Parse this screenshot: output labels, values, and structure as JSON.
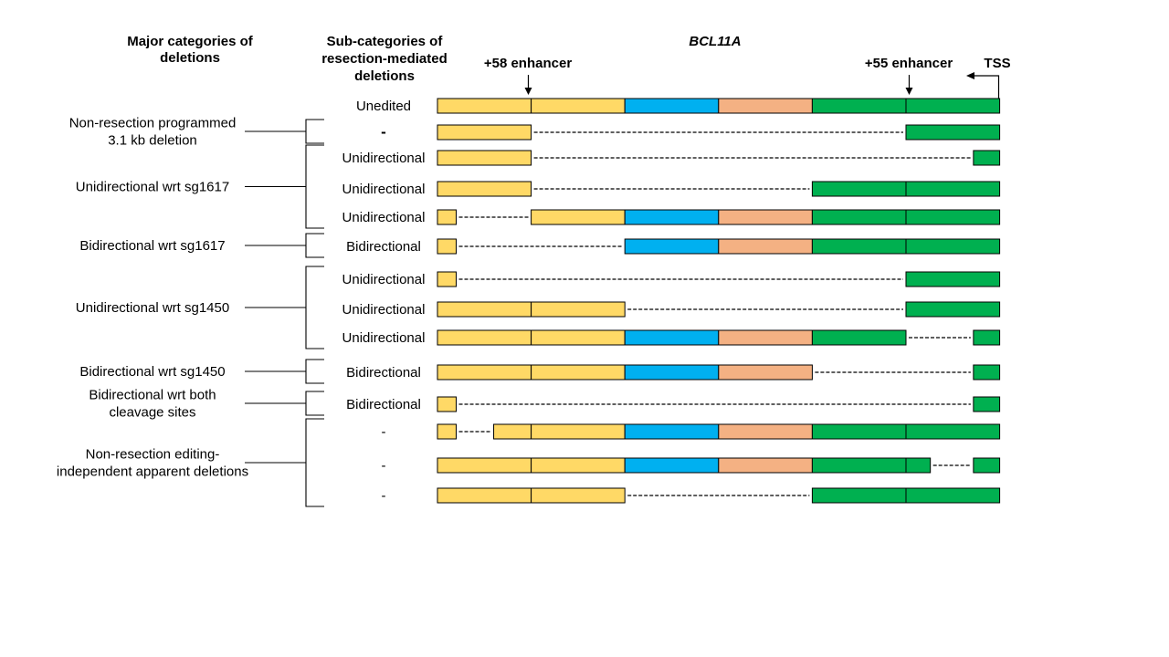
{
  "headers": {
    "major": [
      "Major categories of",
      "deletions"
    ],
    "sub": [
      "Sub-categories of",
      "resection-mediated",
      "deletions"
    ],
    "gene": "BCL11A",
    "enhancer58": "+58 enhancer",
    "enhancer55": "+55 enhancer",
    "tss": "TSS"
  },
  "colors": {
    "yellow": "#FFD966",
    "blue": "#00B0F0",
    "salmon": "#F4B183",
    "green": "#00B050",
    "line": "#000000"
  },
  "rows": [
    {
      "label": "Unedited",
      "bars": [
        [
          "yellow",
          0,
          1
        ],
        [
          "yellow",
          1,
          2
        ],
        [
          "blue",
          2,
          3
        ],
        [
          "salmon",
          3,
          4
        ],
        [
          "green",
          4,
          5
        ],
        [
          "green",
          5,
          6
        ]
      ]
    },
    {
      "label": "-",
      "bold_label": true,
      "bars": [
        [
          "yellow",
          0,
          1
        ],
        [
          "green",
          5,
          6
        ]
      ],
      "gaps": [
        [
          1,
          5
        ]
      ]
    },
    {
      "label": "Unidirectional",
      "bars": [
        [
          "yellow",
          0,
          1
        ],
        [
          "green",
          5.72,
          6
        ]
      ],
      "gaps": [
        [
          1,
          5.72
        ]
      ]
    },
    {
      "label": "Unidirectional",
      "bars": [
        [
          "yellow",
          0,
          1
        ],
        [
          "green",
          4,
          5
        ],
        [
          "green",
          5,
          6
        ]
      ],
      "gaps": [
        [
          1,
          4
        ]
      ]
    },
    {
      "label": "Unidirectional",
      "bars": [
        [
          "yellow",
          0,
          0.2
        ],
        [
          "yellow",
          1,
          2
        ],
        [
          "blue",
          2,
          3
        ],
        [
          "salmon",
          3,
          4
        ],
        [
          "green",
          4,
          5
        ],
        [
          "green",
          5,
          6
        ]
      ],
      "gaps": [
        [
          0.2,
          1
        ]
      ]
    },
    {
      "label": "Bidirectional",
      "bars": [
        [
          "yellow",
          0,
          0.2
        ],
        [
          "blue",
          2,
          3
        ],
        [
          "salmon",
          3,
          4
        ],
        [
          "green",
          4,
          5
        ],
        [
          "green",
          5,
          6
        ]
      ],
      "gaps": [
        [
          0.2,
          2
        ]
      ]
    },
    {
      "label": "Unidirectional",
      "bars": [
        [
          "yellow",
          0,
          0.2
        ],
        [
          "green",
          5,
          6
        ]
      ],
      "gaps": [
        [
          0.2,
          5
        ]
      ]
    },
    {
      "label": "Unidirectional",
      "bars": [
        [
          "yellow",
          0,
          1
        ],
        [
          "yellow",
          1,
          2
        ],
        [
          "green",
          5,
          6
        ]
      ],
      "gaps": [
        [
          2,
          5
        ]
      ]
    },
    {
      "label": "Unidirectional",
      "bars": [
        [
          "yellow",
          0,
          1
        ],
        [
          "yellow",
          1,
          2
        ],
        [
          "blue",
          2,
          3
        ],
        [
          "salmon",
          3,
          4
        ],
        [
          "green",
          4,
          5
        ],
        [
          "green",
          5.72,
          6
        ]
      ],
      "gaps": [
        [
          5,
          5.72
        ]
      ]
    },
    {
      "label": "Bidirectional",
      "bars": [
        [
          "yellow",
          0,
          1
        ],
        [
          "yellow",
          1,
          2
        ],
        [
          "blue",
          2,
          3
        ],
        [
          "salmon",
          3,
          4
        ],
        [
          "green",
          5.72,
          6
        ]
      ],
      "gaps": [
        [
          4,
          5.72
        ]
      ]
    },
    {
      "label": "Bidirectional",
      "bars": [
        [
          "yellow",
          0,
          0.2
        ],
        [
          "green",
          5.72,
          6
        ]
      ],
      "gaps": [
        [
          0.2,
          5.72
        ]
      ]
    },
    {
      "label": "-",
      "bars": [
        [
          "yellow",
          0,
          0.2
        ],
        [
          "yellow",
          0.6,
          1
        ],
        [
          "yellow",
          1,
          2
        ],
        [
          "blue",
          2,
          3
        ],
        [
          "salmon",
          3,
          4
        ],
        [
          "green",
          4,
          5
        ],
        [
          "green",
          5,
          6
        ]
      ],
      "gaps": [
        [
          0.2,
          0.6
        ]
      ]
    },
    {
      "label": "-",
      "bars": [
        [
          "yellow",
          0,
          1
        ],
        [
          "yellow",
          1,
          2
        ],
        [
          "blue",
          2,
          3
        ],
        [
          "salmon",
          3,
          4
        ],
        [
          "green",
          4,
          5
        ],
        [
          "green",
          5,
          5.26
        ],
        [
          "green",
          5.72,
          6
        ]
      ],
      "gaps": [
        [
          5.26,
          5.72
        ]
      ]
    },
    {
      "label": "-",
      "bars": [
        [
          "yellow",
          0,
          1
        ],
        [
          "yellow",
          1,
          2
        ],
        [
          "green",
          4,
          5
        ],
        [
          "green",
          5,
          6
        ]
      ],
      "gaps": [
        [
          2,
          4
        ]
      ]
    }
  ],
  "categories": [
    {
      "lines": [
        "Non-resection programmed",
        "3.1 kb  deletion"
      ],
      "rows": [
        1,
        1
      ]
    },
    {
      "lines": [
        "Unidirectional wrt sg1617"
      ],
      "rows": [
        2,
        4
      ]
    },
    {
      "lines": [
        "Bidirectional wrt sg1617"
      ],
      "rows": [
        5,
        5
      ]
    },
    {
      "lines": [
        "Unidirectional wrt sg1450"
      ],
      "rows": [
        6,
        8
      ]
    },
    {
      "lines": [
        "Bidirectional wrt  sg1450"
      ],
      "rows": [
        9,
        9
      ]
    },
    {
      "lines": [
        "Bidirectional wrt both",
        "cleavage sites"
      ],
      "rows": [
        10,
        10
      ]
    },
    {
      "lines": [
        "Non-resection editing-",
        "independent apparent deletions"
      ],
      "rows": [
        11,
        13
      ]
    }
  ]
}
